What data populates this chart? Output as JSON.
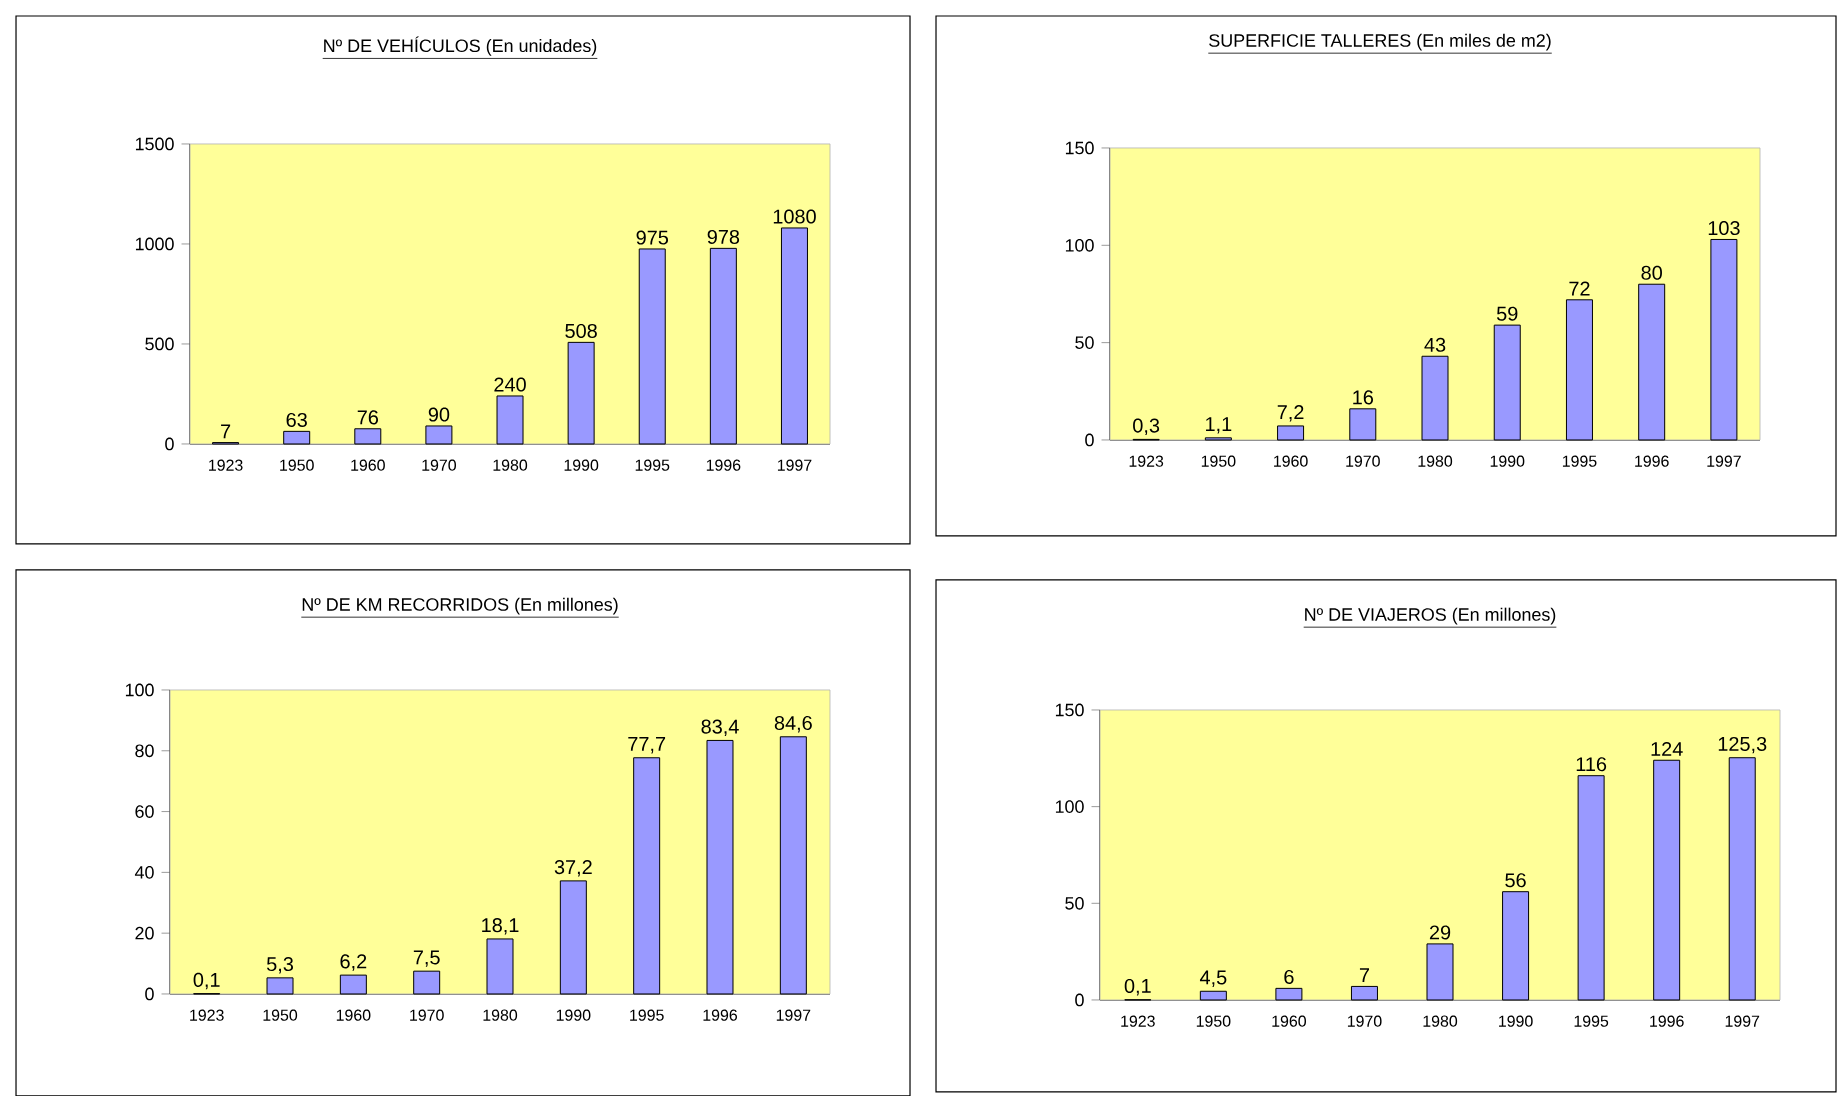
{
  "chart_data": [
    {
      "type": "bar",
      "title": "Nº DE VEHÍCULOS (En unidades)",
      "categories": [
        "1923",
        "1950",
        "1960",
        "1970",
        "1980",
        "1990",
        "1995",
        "1996",
        "1997"
      ],
      "values": [
        7,
        63,
        76,
        90,
        240,
        508,
        975,
        978,
        1080
      ],
      "value_labels": [
        "7",
        "63",
        "76",
        "90",
        "240",
        "508",
        "975",
        "978",
        "1080"
      ],
      "color": "#9999ff",
      "ylim": [
        0,
        1500
      ],
      "yticks": [
        0,
        500,
        1000,
        1500
      ]
    },
    {
      "type": "bar",
      "title": "SUPERFICIE TALLERES (En miles de m2)",
      "categories": [
        "1923",
        "1950",
        "1960",
        "1970",
        "1980",
        "1990",
        "1995",
        "1996",
        "1997"
      ],
      "values": [
        0.3,
        1.1,
        7.2,
        16,
        43,
        59,
        72,
        80,
        103
      ],
      "value_labels": [
        "0,3",
        "1,1",
        "7,2",
        "16",
        "43",
        "59",
        "72",
        "80",
        "103"
      ],
      "color": "#9999ff",
      "ylim": [
        0,
        150
      ],
      "yticks": [
        0,
        50,
        100,
        150
      ]
    },
    {
      "type": "bar",
      "title": "Nº DE KM RECORRIDOS (En millones)",
      "categories": [
        "1923",
        "1950",
        "1960",
        "1970",
        "1980",
        "1990",
        "1995",
        "1996",
        "1997"
      ],
      "values": [
        0.1,
        5.3,
        6.2,
        7.5,
        18.1,
        37.2,
        77.7,
        83.4,
        84.6
      ],
      "value_labels": [
        "0,1",
        "5,3",
        "6,2",
        "7,5",
        "18,1",
        "37,2",
        "77,7",
        "83,4",
        "84,6"
      ],
      "color": "#9999ff",
      "ylim": [
        0,
        100
      ],
      "yticks": [
        0,
        20,
        40,
        60,
        80,
        100
      ]
    },
    {
      "type": "bar",
      "title": "Nº DE VIAJEROS (En millones)",
      "categories": [
        "1923",
        "1950",
        "1960",
        "1970",
        "1980",
        "1990",
        "1995",
        "1996",
        "1997"
      ],
      "values": [
        0.1,
        4.5,
        6,
        7,
        29,
        56,
        116,
        124,
        125.3
      ],
      "value_labels": [
        "0,1",
        "4,5",
        "6",
        "7",
        "29",
        "56",
        "116",
        "124",
        "125,3"
      ],
      "color": "#9999ff",
      "ylim": [
        0,
        150
      ],
      "yticks": [
        0,
        50,
        100,
        150
      ]
    }
  ]
}
